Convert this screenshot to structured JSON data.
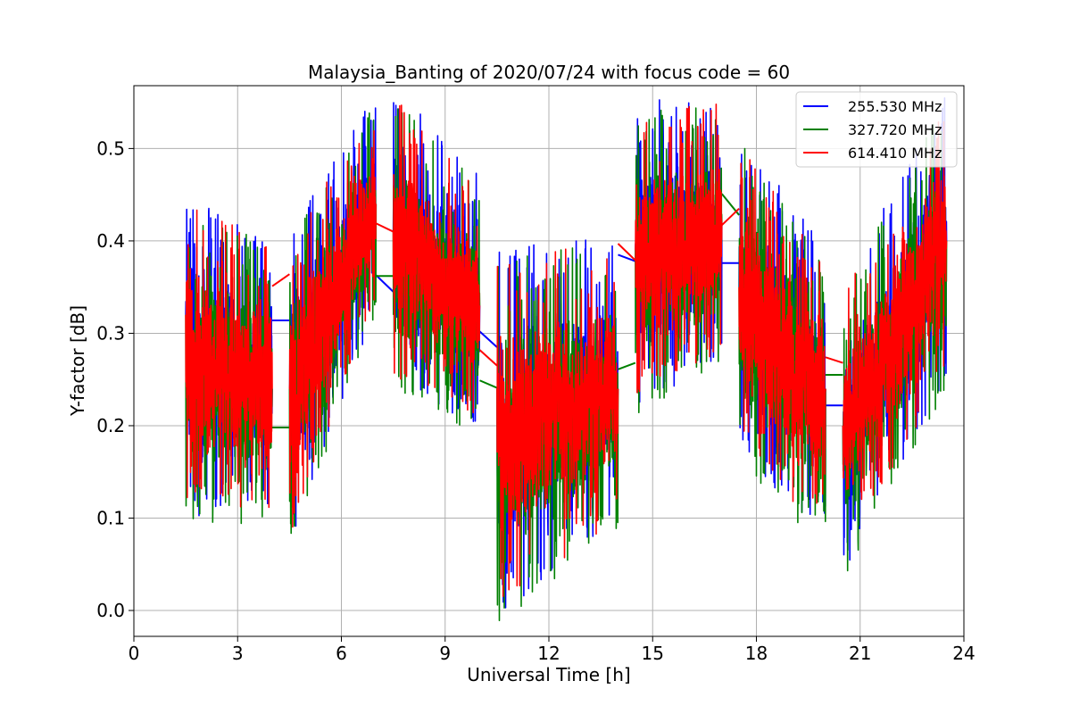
{
  "chart_data": {
    "type": "line",
    "title": "Malaysia_Banting of 2020/07/24 with focus code = 60",
    "xlabel": "Universal Time [h]",
    "ylabel": "Y-factor [dB]",
    "xlim": [
      0,
      24
    ],
    "ylim": [
      -0.028,
      0.568
    ],
    "xticks": [
      0,
      3,
      6,
      9,
      12,
      15,
      18,
      21,
      24
    ],
    "xtick_labels": [
      "0",
      "3",
      "6",
      "9",
      "12",
      "15",
      "18",
      "21",
      "24"
    ],
    "yticks": [
      0.0,
      0.1,
      0.2,
      0.3,
      0.4,
      0.5
    ],
    "ytick_labels": [
      "0.0",
      "0.1",
      "0.2",
      "0.3",
      "0.4",
      "0.5"
    ],
    "grid": true,
    "legend_position": "top-right",
    "segments": [
      {
        "x": [
          1.5,
          4.0
        ],
        "low": [
          0.16,
          0.16
        ],
        "high": [
          0.38,
          0.34
        ],
        "mid_start": 0.32,
        "mid_end": 0.24
      },
      {
        "x": [
          4.5,
          7.0
        ],
        "low": [
          0.13,
          0.38
        ],
        "high": [
          0.34,
          0.49
        ],
        "mid_start": 0.24,
        "mid_end": 0.44
      },
      {
        "x": [
          7.5,
          10.0
        ],
        "low": [
          0.3,
          0.26
        ],
        "high": [
          0.5,
          0.4
        ],
        "mid_start": 0.41,
        "mid_end": 0.33
      },
      {
        "x": [
          10.5,
          14.0
        ],
        "low": [
          0.05,
          0.15
        ],
        "high": [
          0.32,
          0.34
        ],
        "mid_start": 0.24,
        "mid_end": 0.24
      },
      {
        "x": [
          14.5,
          17.0
        ],
        "low": [
          0.28,
          0.33
        ],
        "high": [
          0.48,
          0.49
        ],
        "mid_start": 0.39,
        "mid_end": 0.42
      },
      {
        "x": [
          17.5,
          20.0
        ],
        "low": [
          0.23,
          0.13
        ],
        "high": [
          0.45,
          0.32
        ],
        "mid_start": 0.35,
        "mid_end": 0.24
      },
      {
        "x": [
          20.5,
          23.5
        ],
        "low": [
          0.1,
          0.31
        ],
        "high": [
          0.28,
          0.5
        ],
        "mid_start": 0.2,
        "mid_end": 0.4
      }
    ],
    "series": [
      {
        "name": "255.530 MHz",
        "color": "#0000ff",
        "gap_lines": [
          [
            [
              4.0,
              0.314
            ],
            [
              4.5,
              0.314
            ]
          ],
          [
            [
              7.0,
              0.363
            ],
            [
              7.5,
              0.345
            ]
          ],
          [
            [
              10.0,
              0.302
            ],
            [
              10.5,
              0.285
            ]
          ],
          [
            [
              14.0,
              0.385
            ],
            [
              14.5,
              0.378
            ]
          ],
          [
            [
              17.0,
              0.376
            ],
            [
              17.5,
              0.376
            ]
          ],
          [
            [
              20.0,
              0.222
            ],
            [
              20.5,
              0.222
            ]
          ]
        ]
      },
      {
        "name": "327.720 MHz",
        "color": "#008000",
        "gap_lines": [
          [
            [
              4.0,
              0.198
            ],
            [
              4.5,
              0.198
            ]
          ],
          [
            [
              7.0,
              0.362
            ],
            [
              7.5,
              0.362
            ]
          ],
          [
            [
              10.0,
              0.249
            ],
            [
              10.5,
              0.241
            ]
          ],
          [
            [
              14.0,
              0.261
            ],
            [
              14.5,
              0.268
            ]
          ],
          [
            [
              17.0,
              0.451
            ],
            [
              17.5,
              0.428
            ]
          ],
          [
            [
              20.0,
              0.255
            ],
            [
              20.5,
              0.255
            ]
          ]
        ]
      },
      {
        "name": "614.410 MHz",
        "color": "#ff0000",
        "gap_lines": [
          [
            [
              4.0,
              0.351
            ],
            [
              4.5,
              0.364
            ]
          ],
          [
            [
              7.0,
              0.419
            ],
            [
              7.5,
              0.41
            ]
          ],
          [
            [
              10.0,
              0.282
            ],
            [
              10.5,
              0.265
            ]
          ],
          [
            [
              14.0,
              0.397
            ],
            [
              14.5,
              0.379
            ]
          ],
          [
            [
              17.0,
              0.417
            ],
            [
              17.5,
              0.435
            ]
          ],
          [
            [
              20.0,
              0.274
            ],
            [
              20.5,
              0.268
            ]
          ]
        ]
      }
    ]
  }
}
